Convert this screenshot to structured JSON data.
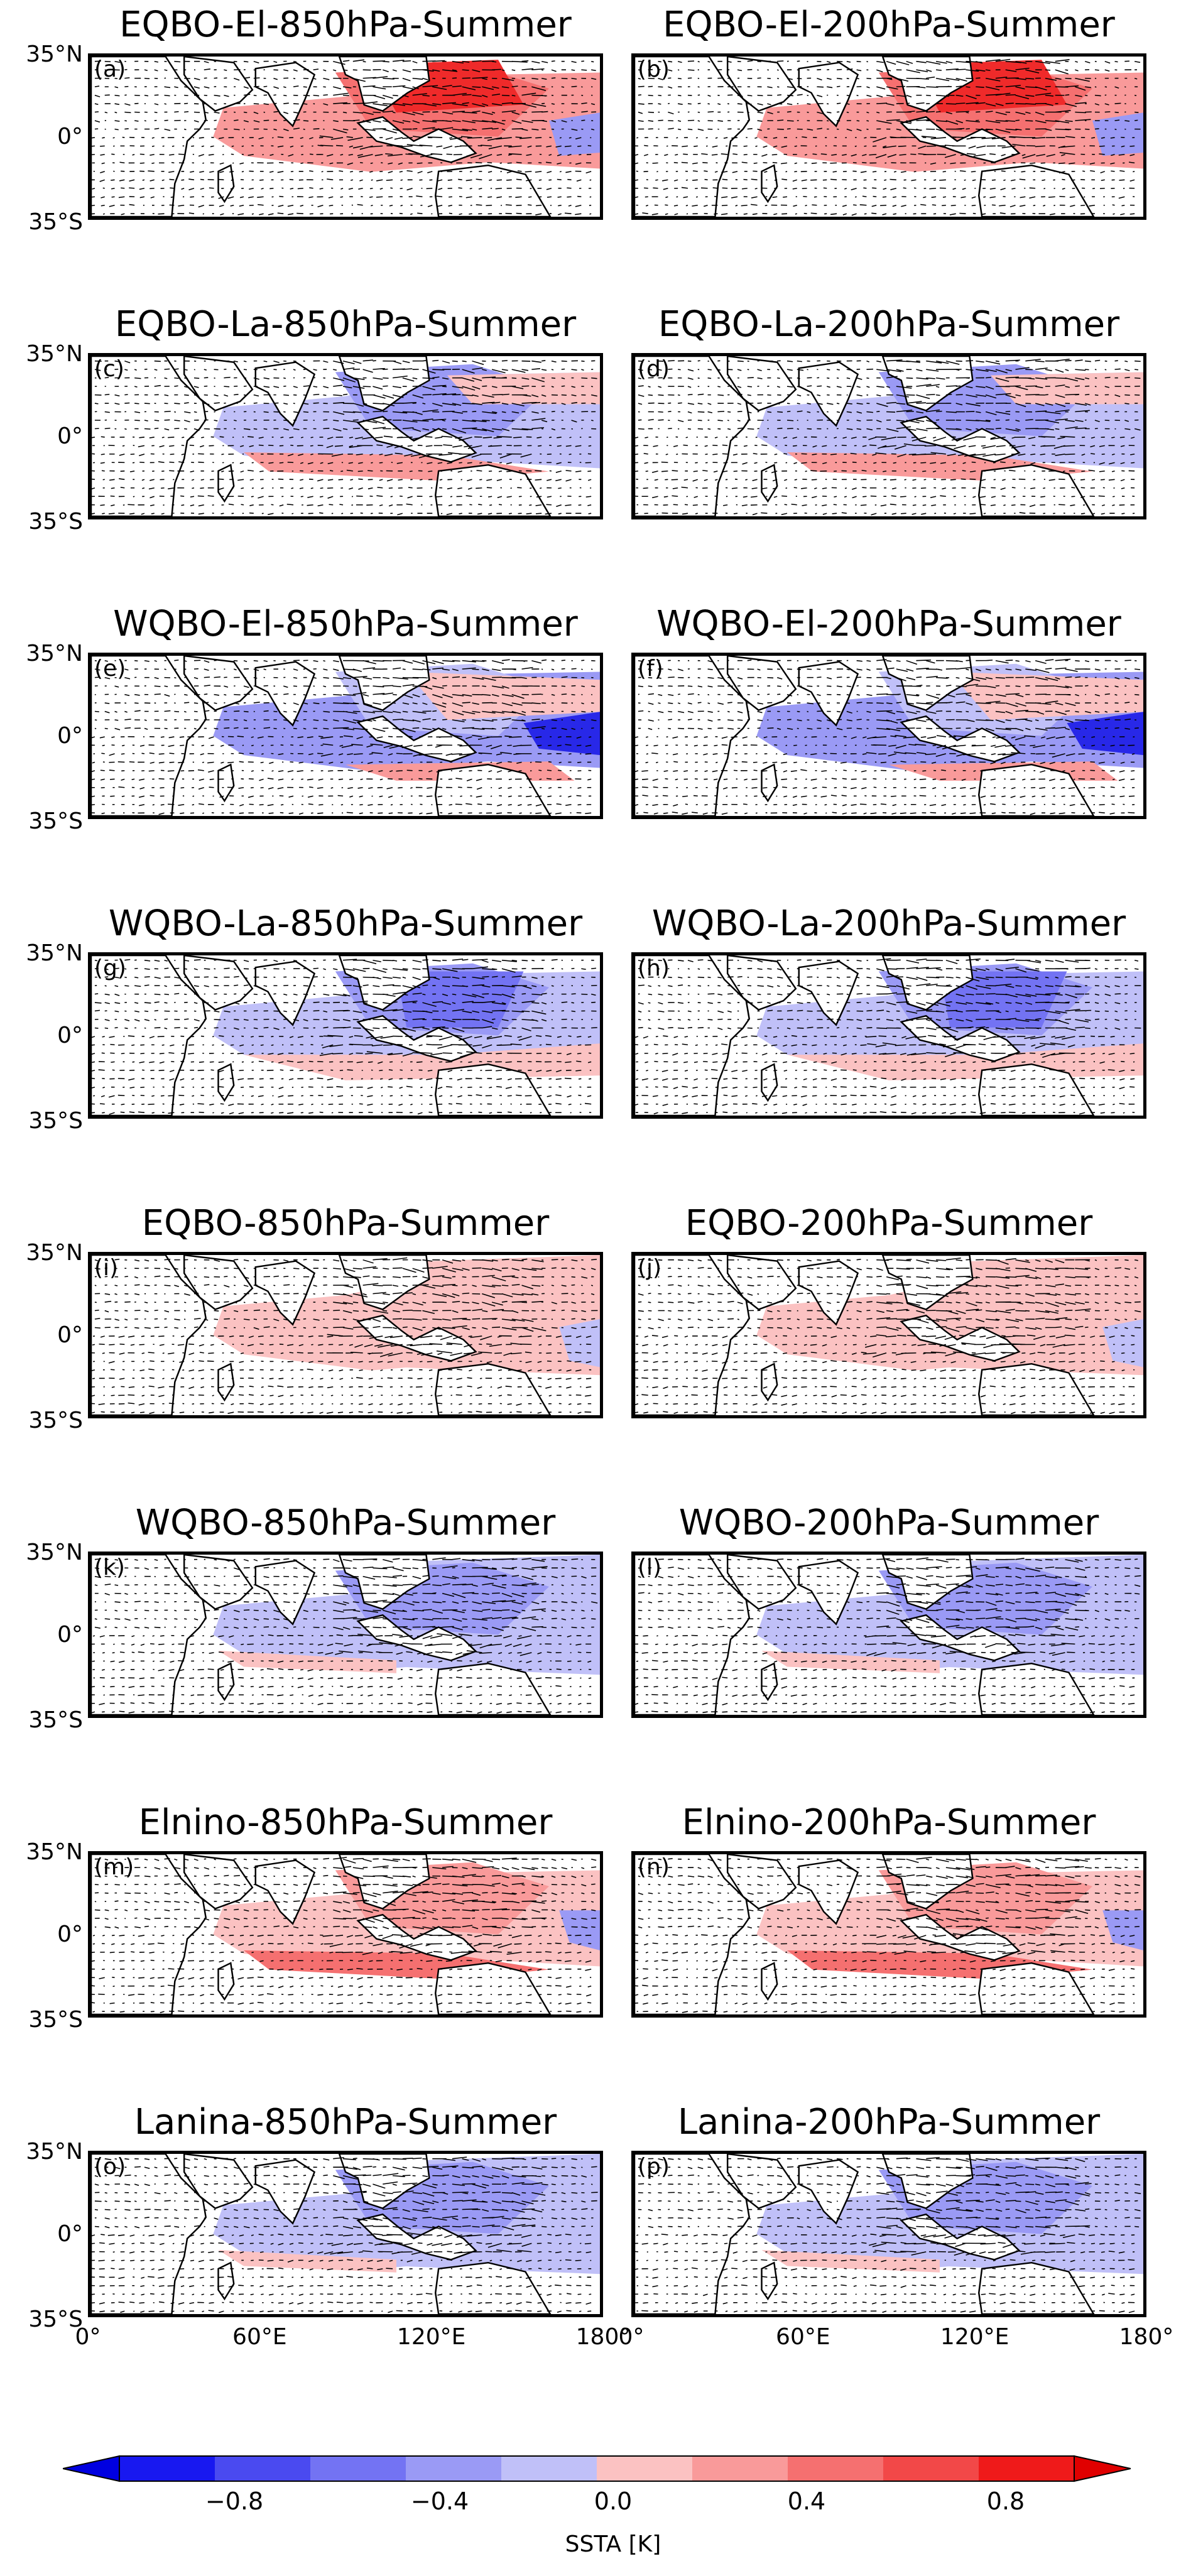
{
  "panels": [
    {
      "letter": "(a)",
      "title": "EQBO-El-850hPa-Summer",
      "pattern": "warm_strong"
    },
    {
      "letter": "(b)",
      "title": "EQBO-El-200hPa-Summer",
      "pattern": "warm_strong"
    },
    {
      "letter": "(c)",
      "title": "EQBO-La-850hPa-Summer",
      "pattern": "mixed_cool"
    },
    {
      "letter": "(d)",
      "title": "EQBO-La-200hPa-Summer",
      "pattern": "mixed_cool"
    },
    {
      "letter": "(e)",
      "title": "WQBO-El-850hPa-Summer",
      "pattern": "cool_east"
    },
    {
      "letter": "(f)",
      "title": "WQBO-El-200hPa-Summer",
      "pattern": "cool_east"
    },
    {
      "letter": "(g)",
      "title": "WQBO-La-850hPa-Summer",
      "pattern": "cool"
    },
    {
      "letter": "(h)",
      "title": "WQBO-La-200hPa-Summer",
      "pattern": "cool"
    },
    {
      "letter": "(i)",
      "title": "EQBO-850hPa-Summer",
      "pattern": "warm_weak"
    },
    {
      "letter": "(j)",
      "title": "EQBO-200hPa-Summer",
      "pattern": "warm_weak"
    },
    {
      "letter": "(k)",
      "title": "WQBO-850hPa-Summer",
      "pattern": "cool_weak"
    },
    {
      "letter": "(l)",
      "title": "WQBO-200hPa-Summer",
      "pattern": "cool_weak"
    },
    {
      "letter": "(m)",
      "title": "Elnino-850hPa-Summer",
      "pattern": "warm"
    },
    {
      "letter": "(n)",
      "title": "Elnino-200hPa-Summer",
      "pattern": "warm"
    },
    {
      "letter": "(o)",
      "title": "Lanina-850hPa-Summer",
      "pattern": "cool_weak"
    },
    {
      "letter": "(p)",
      "title": "Lanina-200hPa-Summer",
      "pattern": "cool_weak"
    }
  ],
  "axes": {
    "lat_top": "35°N",
    "lat_mid": "0°",
    "lat_bottom": "35°S",
    "lon_left": [
      "0°",
      "60°E",
      "120°E",
      "180°"
    ],
    "lon_right": [
      "0°",
      "60°E",
      "120°E",
      "180°"
    ]
  },
  "colorbar": {
    "label": "SSTA [K]",
    "ticks": [
      "−0.8",
      "−0.4",
      "0.0",
      "0.4",
      "0.8"
    ],
    "colors": [
      "#1818f0",
      "#4a4af0",
      "#7373f3",
      "#9a9af5",
      "#c0c0f8",
      "#fbc2c2",
      "#f99a9a",
      "#f57070",
      "#f24848",
      "#ef1a1a"
    ],
    "extend_low": "#0000e0",
    "extend_high": "#e00000"
  }
}
